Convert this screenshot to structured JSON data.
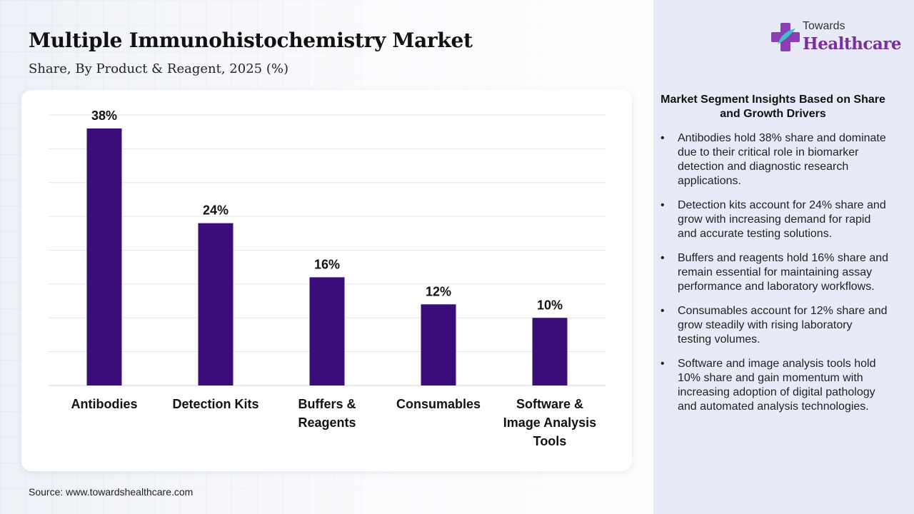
{
  "header": {
    "title": "Multiple Immunohistochemistry Market",
    "subtitle": "Share, By Product & Reagent, 2025 (%)"
  },
  "logo": {
    "top_text": "Towards",
    "main_text": "Healthcare",
    "icon": "medical-cross-icon"
  },
  "chart_data": {
    "type": "bar",
    "categories": [
      "Antibodies",
      "Detection Kits",
      "Buffers & Reagents",
      "Consumables",
      "Software & Image Analysis Tools"
    ],
    "category_lines": [
      [
        "Antibodies"
      ],
      [
        "Detection Kits"
      ],
      [
        "Buffers &",
        "Reagents"
      ],
      [
        "Consumables"
      ],
      [
        "Software &",
        "Image Analysis",
        "Tools"
      ]
    ],
    "values": [
      38,
      24,
      16,
      12,
      10
    ],
    "data_labels": [
      "38%",
      "24%",
      "16%",
      "12%",
      "10%"
    ],
    "ylim": [
      0,
      40
    ],
    "grid": true,
    "legend": "none",
    "bar_color": "#3b0d7a"
  },
  "insights": {
    "title": "Market Segment Insights Based on Share and Growth Drivers",
    "items": [
      "Antibodies hold 38% share and dominate due to their critical role in biomarker detection and diagnostic research applications.",
      "Detection kits account for 24% share and grow with increasing demand for rapid and accurate testing solutions.",
      "Buffers and reagents hold 16% share and remain essential for maintaining assay performance and laboratory workflows.",
      "Consumables account for 12% share and grow steadily with rising laboratory testing volumes.",
      "Software and image analysis tools hold 10% share and gain momentum with increasing adoption of digital pathology and automated analysis technologies."
    ]
  },
  "footer": {
    "source": "Source: www.towardshealthcare.com"
  }
}
